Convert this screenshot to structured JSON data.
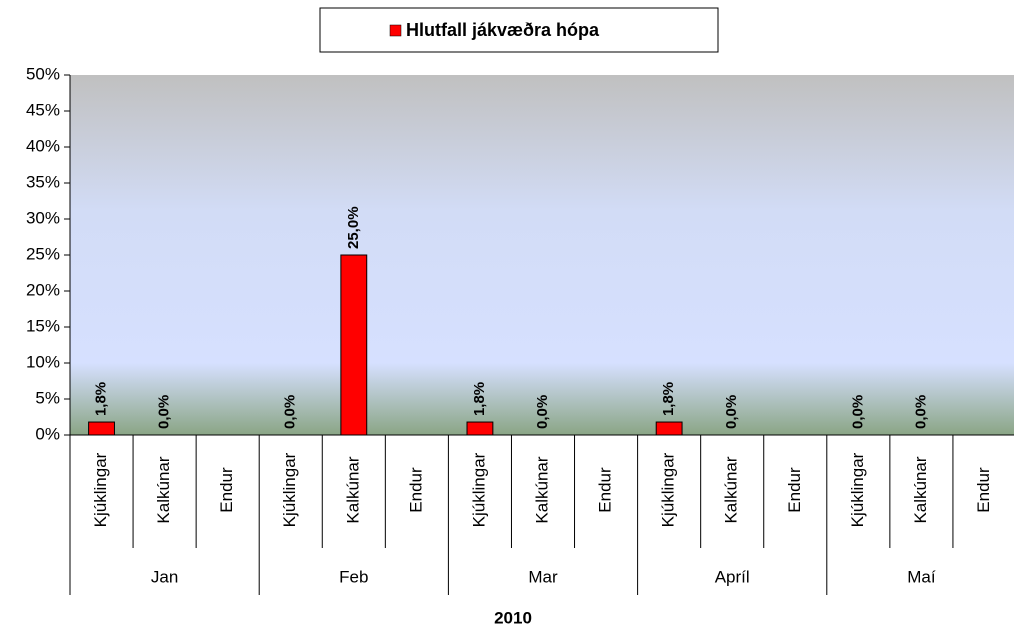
{
  "chart_data": {
    "type": "bar",
    "legend": "top",
    "xlabel": "2010",
    "groups": [
      "Jan",
      "Feb",
      "Mar",
      "Apríl",
      "Maí"
    ],
    "categories": [
      "Kjúklingar",
      "Kalkúnar",
      "Endur",
      "Kjúklingar",
      "Kalkúnar",
      "Endur",
      "Kjúklingar",
      "Kalkúnar",
      "Endur",
      "Kjúklingar",
      "Kalkúnar",
      "Endur",
      "Kjúklingar",
      "Kalkúnar",
      "Endur"
    ],
    "series": [
      {
        "name": "Hlutfall jákvæðra hópa",
        "color": "#ff0000",
        "values": [
          1.8,
          0,
          null,
          0,
          25,
          null,
          1.8,
          0,
          null,
          1.8,
          0,
          null,
          0,
          0,
          null
        ],
        "value_labels": [
          "1,8%",
          "0,0%",
          null,
          "0,0%",
          "25,0%",
          null,
          "1,8%",
          "0,0%",
          null,
          "1,8%",
          "0,0%",
          null,
          "0,0%",
          "0,0%",
          null
        ]
      }
    ],
    "ylim": [
      0,
      50
    ],
    "yticks": [
      {
        "value": 0,
        "label": "0%"
      },
      {
        "value": 5,
        "label": "5%"
      },
      {
        "value": 10,
        "label": "10%"
      },
      {
        "value": 15,
        "label": "15%"
      },
      {
        "value": 20,
        "label": "20%"
      },
      {
        "value": 25,
        "label": "25%"
      },
      {
        "value": 30,
        "label": "30%"
      },
      {
        "value": 35,
        "label": "35%"
      },
      {
        "value": 40,
        "label": "40%"
      },
      {
        "value": 45,
        "label": "45%"
      },
      {
        "value": 50,
        "label": "50%"
      }
    ]
  }
}
